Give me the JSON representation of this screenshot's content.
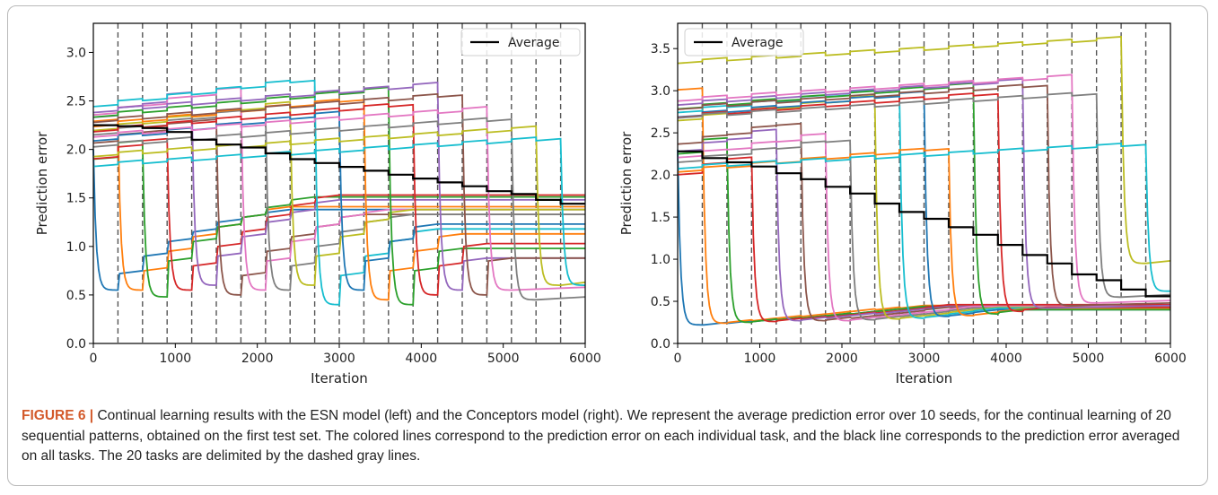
{
  "caption": {
    "label": "FIGURE 6 |",
    "text": " Continual learning results with the ESN model (left) and the Conceptors model (right). We represent the average prediction error over 10 seeds, for the continual learning of 20 sequential patterns, obtained on the first test set. The colored lines correspond to the prediction error on each individual task, and the black line corresponds to the prediction error averaged on all tasks. The 20 tasks are delimited by the dashed gray lines."
  },
  "colors": {
    "palette": [
      "#1f77b4",
      "#ff7f0e",
      "#2ca02c",
      "#d62728",
      "#9467bd",
      "#8c564b",
      "#e377c2",
      "#7f7f7f",
      "#bcbd22",
      "#17becf"
    ],
    "average": "#000000",
    "task_boundary": "#555555",
    "caption_label": "#d35a2b"
  },
  "chart_data": [
    {
      "id": "esn",
      "type": "line",
      "xlabel": "Iteration",
      "ylabel": "Prediction error",
      "xlim": [
        0,
        6000
      ],
      "ylim": [
        0,
        3.3
      ],
      "xticks": [
        0,
        1000,
        2000,
        3000,
        4000,
        5000,
        6000
      ],
      "yticks": [
        0.0,
        0.5,
        1.0,
        1.5,
        2.0,
        2.5,
        3.0
      ],
      "ytick_labels": [
        "0.0",
        "0.5",
        "1.0",
        "1.5",
        "2.0",
        "2.5",
        "3.0"
      ],
      "task_boundaries": [
        300,
        600,
        900,
        1200,
        1500,
        1800,
        2100,
        2400,
        2700,
        3000,
        3300,
        3600,
        3900,
        4200,
        4500,
        4800,
        5100,
        5400,
        5700
      ],
      "legend": {
        "position": "top-right",
        "entries": [
          "Average"
        ]
      },
      "average": {
        "name": "Average",
        "values": [
          2.25,
          2.24,
          2.22,
          2.18,
          2.1,
          2.05,
          2.02,
          1.96,
          1.9,
          1.86,
          1.82,
          1.78,
          1.74,
          1.7,
          1.66,
          1.62,
          1.57,
          1.54,
          1.48,
          1.44
        ]
      },
      "tasks": [
        {
          "before": 2.0,
          "min": 0.55,
          "after": [
            0.72,
            0.9,
            1.05,
            1.15,
            1.25,
            1.3,
            1.35
          ]
        },
        {
          "before": 2.3,
          "min": 0.55,
          "after": [
            0.75,
            0.95,
            1.1,
            1.2,
            1.3,
            1.38
          ]
        },
        {
          "before": 2.05,
          "min": 0.48,
          "after": [
            0.85,
            1.05,
            1.2,
            1.3,
            1.4,
            1.48
          ]
        },
        {
          "before": 2.1,
          "min": 0.55,
          "after": [
            0.8,
            1.0,
            1.15,
            1.3,
            1.42,
            1.5
          ]
        },
        {
          "before": 2.55,
          "min": 0.6,
          "after": [
            0.9,
            1.1,
            1.25,
            1.35,
            1.45
          ]
        },
        {
          "before": 2.3,
          "min": 0.5,
          "after": [
            0.7,
            0.95,
            1.1,
            1.2,
            1.3
          ]
        },
        {
          "before": 2.6,
          "min": 0.55,
          "after": [
            0.85,
            1.05,
            1.2,
            1.3,
            1.35
          ]
        },
        {
          "before": 2.4,
          "min": 0.55,
          "after": [
            0.8,
            1.0,
            1.15,
            1.25,
            1.3
          ]
        },
        {
          "before": 2.45,
          "min": 0.6,
          "after": [
            0.9,
            1.1,
            1.25,
            1.35
          ]
        },
        {
          "before": 2.7,
          "min": 0.4,
          "after": [
            0.7,
            0.9,
            1.05,
            1.15
          ]
        },
        {
          "before": 2.35,
          "min": 0.55,
          "after": [
            0.85,
            1.05,
            1.2
          ]
        },
        {
          "before": 2.5,
          "min": 0.45,
          "after": [
            0.75,
            0.95,
            1.1
          ]
        },
        {
          "before": 2.6,
          "min": 0.4,
          "after": [
            0.75,
            0.95
          ]
        },
        {
          "before": 2.45,
          "min": 0.5,
          "after": [
            0.8,
            1.0
          ]
        },
        {
          "before": 2.65,
          "min": 0.55,
          "after": [
            0.85
          ]
        },
        {
          "before": 2.55,
          "min": 0.5,
          "after": [
            0.85
          ]
        },
        {
          "before": 2.4,
          "min": 0.55,
          "after": []
        },
        {
          "before": 2.3,
          "min": 0.45,
          "after": []
        },
        {
          "before": 2.2,
          "min": 0.6,
          "after": []
        },
        {
          "before": 2.1,
          "min": 0.6,
          "after": []
        }
      ]
    },
    {
      "id": "conceptors",
      "type": "line",
      "xlabel": "Iteration",
      "ylabel": "Prediction error",
      "xlim": [
        0,
        6000
      ],
      "ylim": [
        0,
        3.8
      ],
      "xticks": [
        0,
        1000,
        2000,
        3000,
        4000,
        5000,
        6000
      ],
      "yticks": [
        0.0,
        0.5,
        1.0,
        1.5,
        2.0,
        2.5,
        3.0,
        3.5
      ],
      "ytick_labels": [
        "0.0",
        "0.5",
        "1.0",
        "1.5",
        "2.0",
        "2.5",
        "3.0",
        "3.5"
      ],
      "task_boundaries": [
        300,
        600,
        900,
        1200,
        1500,
        1800,
        2100,
        2400,
        2700,
        3000,
        3300,
        3600,
        3900,
        4200,
        4500,
        4800,
        5100,
        5400,
        5700
      ],
      "legend": {
        "position": "top-left",
        "entries": [
          "Average"
        ]
      },
      "average": {
        "name": "Average",
        "values": [
          2.28,
          2.2,
          2.15,
          2.1,
          2.02,
          1.95,
          1.86,
          1.78,
          1.66,
          1.56,
          1.48,
          1.38,
          1.29,
          1.17,
          1.05,
          0.95,
          0.82,
          0.75,
          0.64,
          0.56
        ]
      },
      "tasks": [
        {
          "before": 2.3,
          "min": 0.22,
          "after": [
            0.22,
            0.24,
            0.26,
            0.28,
            0.3,
            0.32,
            0.35,
            0.38,
            0.4,
            0.42
          ]
        },
        {
          "before": 3.02,
          "min": 0.24,
          "after": [
            0.25,
            0.27,
            0.3,
            0.32,
            0.35,
            0.38,
            0.4,
            0.42
          ]
        },
        {
          "before": 2.4,
          "min": 0.25,
          "after": [
            0.26,
            0.28,
            0.3,
            0.33,
            0.35,
            0.38,
            0.41
          ]
        },
        {
          "before": 2.2,
          "min": 0.26,
          "after": [
            0.27,
            0.29,
            0.31,
            0.34,
            0.36,
            0.39,
            0.43
          ]
        },
        {
          "before": 2.5,
          "min": 0.27,
          "after": [
            0.28,
            0.3,
            0.33,
            0.35,
            0.38,
            0.41
          ]
        },
        {
          "before": 2.6,
          "min": 0.27,
          "after": [
            0.28,
            0.3,
            0.33,
            0.36,
            0.4
          ]
        },
        {
          "before": 2.45,
          "min": 0.27,
          "after": [
            0.28,
            0.31,
            0.34,
            0.37,
            0.41
          ]
        },
        {
          "before": 2.4,
          "min": 0.28,
          "after": [
            0.29,
            0.32,
            0.35,
            0.39
          ]
        },
        {
          "before": 2.9,
          "min": 0.29,
          "after": [
            0.3,
            0.33,
            0.37,
            0.4
          ]
        },
        {
          "before": 3.0,
          "min": 0.3,
          "after": [
            0.31,
            0.35,
            0.39
          ]
        },
        {
          "before": 2.95,
          "min": 0.32,
          "after": [
            0.33,
            0.37
          ]
        },
        {
          "before": 2.3,
          "min": 0.33,
          "after": [
            0.34,
            0.38
          ]
        },
        {
          "before": 3.05,
          "min": 0.35,
          "after": [
            0.37
          ]
        },
        {
          "before": 2.95,
          "min": 0.38,
          "after": [
            0.4
          ]
        },
        {
          "before": 3.1,
          "min": 0.42,
          "after": []
        },
        {
          "before": 3.05,
          "min": 0.45,
          "after": []
        },
        {
          "before": 3.15,
          "min": 0.48,
          "after": []
        },
        {
          "before": 2.95,
          "min": 0.55,
          "after": []
        },
        {
          "before": 3.6,
          "min": 0.95,
          "after": []
        },
        {
          "before": 2.35,
          "min": 0.62,
          "after": []
        }
      ]
    }
  ]
}
